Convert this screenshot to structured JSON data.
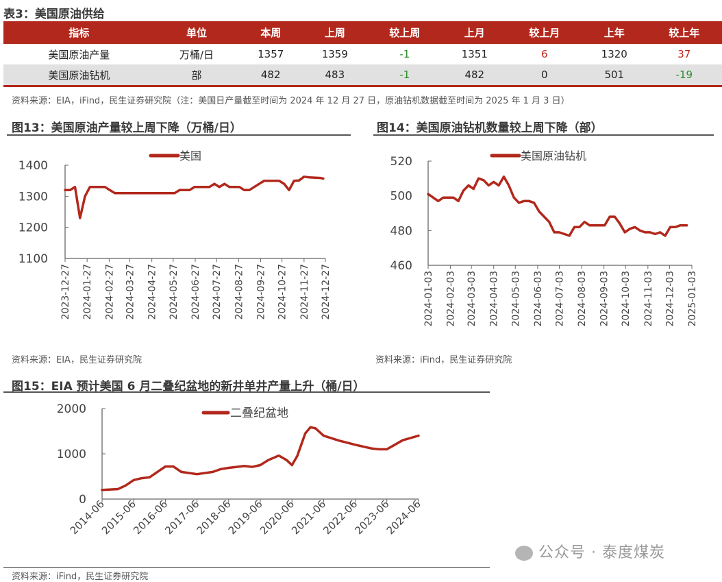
{
  "table3": {
    "title": "表3：美国原油供给",
    "headers": [
      "指标",
      "单位",
      "本周",
      "上周",
      "较上周",
      "上月",
      "较上月",
      "上年",
      "较上年"
    ],
    "rows": [
      [
        "美国原油产量",
        "万桶/日",
        "1357",
        "1359",
        "-1",
        "1351",
        "6",
        "1320",
        "37"
      ],
      [
        "美国原油钻机",
        "部",
        "482",
        "483",
        "-1",
        "482",
        "0",
        "501",
        "-19"
      ]
    ],
    "colors": {
      "header_bg": "#b2281c",
      "negative": "#2e8b2e",
      "positive": "#c0281c"
    },
    "source": "资料来源：EIA，iFind，民生证券研究院（注：美国日产量截至时间为 2024 年 12 月 27 日，原油钻机数据截至时间为 2025 年 1 月 3 日）"
  },
  "figures": {
    "fig13": {
      "title": "图13：美国原油产量较上周下降（万桶/日）",
      "source": "资料来源：EIA，民生证券研究院"
    },
    "fig14": {
      "title": "图14：美国原油钻机数量较上周下降（部）",
      "source": "资料来源：iFind，民生证券研究院"
    },
    "fig15": {
      "title": "图15：EIA 预计美国 6 月二叠纪盆地的新井单井产量上升（桶/日）",
      "source": "资料来源：iFind，民生证券研究院"
    }
  },
  "watermark": "公众号 · 泰度煤炭",
  "chart_data": [
    {
      "type": "line",
      "legend": "top",
      "grid": false,
      "color": "#b2281c",
      "ylim": [
        1100,
        1400
      ],
      "yticks": [
        1100,
        1200,
        1300,
        1400
      ],
      "xticks": [
        "2023-12-27",
        "2024-01-27",
        "2024-02-27",
        "2024-03-27",
        "2024-04-27",
        "2024-05-27",
        "2024-06-27",
        "2024-07-27",
        "2024-08-27",
        "2024-09-27",
        "2024-10-27",
        "2024-11-27",
        "2024-12-27"
      ],
      "series": [
        {
          "name": "美国",
          "points": [
            [
              "2023-12-27",
              1320
            ],
            [
              "2024-01-03",
              1320
            ],
            [
              "2024-01-10",
              1330
            ],
            [
              "2024-01-17",
              1230
            ],
            [
              "2024-01-24",
              1300
            ],
            [
              "2024-01-31",
              1330
            ],
            [
              "2024-02-07",
              1330
            ],
            [
              "2024-02-14",
              1330
            ],
            [
              "2024-02-21",
              1330
            ],
            [
              "2024-02-28",
              1320
            ],
            [
              "2024-03-06",
              1310
            ],
            [
              "2024-03-13",
              1310
            ],
            [
              "2024-03-20",
              1310
            ],
            [
              "2024-03-27",
              1310
            ],
            [
              "2024-04-03",
              1310
            ],
            [
              "2024-04-10",
              1310
            ],
            [
              "2024-04-17",
              1310
            ],
            [
              "2024-04-24",
              1310
            ],
            [
              "2024-05-01",
              1310
            ],
            [
              "2024-05-08",
              1310
            ],
            [
              "2024-05-15",
              1310
            ],
            [
              "2024-05-22",
              1310
            ],
            [
              "2024-05-29",
              1310
            ],
            [
              "2024-06-05",
              1320
            ],
            [
              "2024-06-12",
              1320
            ],
            [
              "2024-06-19",
              1320
            ],
            [
              "2024-06-26",
              1330
            ],
            [
              "2024-07-03",
              1330
            ],
            [
              "2024-07-10",
              1330
            ],
            [
              "2024-07-17",
              1330
            ],
            [
              "2024-07-24",
              1340
            ],
            [
              "2024-07-31",
              1330
            ],
            [
              "2024-08-07",
              1340
            ],
            [
              "2024-08-14",
              1330
            ],
            [
              "2024-08-21",
              1330
            ],
            [
              "2024-08-28",
              1330
            ],
            [
              "2024-09-04",
              1320
            ],
            [
              "2024-09-11",
              1320
            ],
            [
              "2024-09-18",
              1330
            ],
            [
              "2024-09-25",
              1340
            ],
            [
              "2024-10-02",
              1350
            ],
            [
              "2024-10-09",
              1350
            ],
            [
              "2024-10-16",
              1350
            ],
            [
              "2024-10-23",
              1350
            ],
            [
              "2024-10-30",
              1340
            ],
            [
              "2024-11-06",
              1320
            ],
            [
              "2024-11-13",
              1350
            ],
            [
              "2024-11-20",
              1351
            ],
            [
              "2024-11-27",
              1363
            ],
            [
              "2024-12-04",
              1361
            ],
            [
              "2024-12-11",
              1360
            ],
            [
              "2024-12-20",
              1359
            ],
            [
              "2024-12-24",
              1357
            ]
          ]
        }
      ]
    },
    {
      "type": "line",
      "legend": "top",
      "grid": false,
      "color": "#b2281c",
      "ylim": [
        460,
        520
      ],
      "yticks": [
        460,
        480,
        500,
        520
      ],
      "xticks": [
        "2024-01-03",
        "2024-02-03",
        "2024-03-03",
        "2024-04-03",
        "2024-05-03",
        "2024-06-03",
        "2024-07-03",
        "2024-08-03",
        "2024-09-03",
        "2024-10-03",
        "2024-11-03",
        "2024-12-03",
        "2025-01-03"
      ],
      "series": [
        {
          "name": "美国原油钻机",
          "points": [
            [
              "2024-01-03",
              501
            ],
            [
              "2024-01-10",
              499
            ],
            [
              "2024-01-17",
              497
            ],
            [
              "2024-01-24",
              499
            ],
            [
              "2024-01-31",
              499
            ],
            [
              "2024-02-07",
              499
            ],
            [
              "2024-02-14",
              497
            ],
            [
              "2024-02-21",
              503
            ],
            [
              "2024-02-28",
              506
            ],
            [
              "2024-03-06",
              504
            ],
            [
              "2024-03-13",
              510
            ],
            [
              "2024-03-20",
              509
            ],
            [
              "2024-03-27",
              506
            ],
            [
              "2024-04-03",
              508
            ],
            [
              "2024-04-10",
              506
            ],
            [
              "2024-04-17",
              511
            ],
            [
              "2024-04-24",
              506
            ],
            [
              "2024-05-01",
              499
            ],
            [
              "2024-05-08",
              496
            ],
            [
              "2024-05-15",
              497
            ],
            [
              "2024-05-22",
              497
            ],
            [
              "2024-05-29",
              496
            ],
            [
              "2024-06-05",
              491
            ],
            [
              "2024-06-12",
              488
            ],
            [
              "2024-06-19",
              485
            ],
            [
              "2024-06-26",
              479
            ],
            [
              "2024-07-03",
              479
            ],
            [
              "2024-07-10",
              478
            ],
            [
              "2024-07-17",
              477
            ],
            [
              "2024-07-24",
              482
            ],
            [
              "2024-07-31",
              482
            ],
            [
              "2024-08-07",
              485
            ],
            [
              "2024-08-14",
              483
            ],
            [
              "2024-08-21",
              483
            ],
            [
              "2024-08-28",
              483
            ],
            [
              "2024-09-04",
              483
            ],
            [
              "2024-09-11",
              488
            ],
            [
              "2024-09-18",
              488
            ],
            [
              "2024-09-25",
              484
            ],
            [
              "2024-10-02",
              479
            ],
            [
              "2024-10-09",
              481
            ],
            [
              "2024-10-16",
              482
            ],
            [
              "2024-10-23",
              480
            ],
            [
              "2024-10-30",
              479
            ],
            [
              "2024-11-06",
              479
            ],
            [
              "2024-11-13",
              478
            ],
            [
              "2024-11-20",
              479
            ],
            [
              "2024-11-27",
              477
            ],
            [
              "2024-12-04",
              482
            ],
            [
              "2024-12-11",
              482
            ],
            [
              "2024-12-18",
              483
            ],
            [
              "2024-12-27",
              483
            ]
          ]
        }
      ]
    },
    {
      "type": "line",
      "legend": "top",
      "grid": false,
      "color": "#b2281c",
      "ylim": [
        0,
        2000
      ],
      "yticks": [
        0,
        1000,
        2000
      ],
      "xticks": [
        "2014-06",
        "2015-06",
        "2016-06",
        "2017-06",
        "2018-06",
        "2019-06",
        "2020-06",
        "2021-06",
        "2022-06",
        "2023-06",
        "2024-06"
      ],
      "series": [
        {
          "name": "二叠纪盆地",
          "points": [
            [
              "2014-06",
              200
            ],
            [
              "2014-12",
              220
            ],
            [
              "2015-03",
              300
            ],
            [
              "2015-06",
              420
            ],
            [
              "2015-09",
              460
            ],
            [
              "2015-12",
              480
            ],
            [
              "2016-03",
              600
            ],
            [
              "2016-06",
              720
            ],
            [
              "2016-09",
              720
            ],
            [
              "2016-12",
              600
            ],
            [
              "2017-06",
              550
            ],
            [
              "2017-12",
              600
            ],
            [
              "2018-03",
              660
            ],
            [
              "2018-06",
              690
            ],
            [
              "2018-12",
              730
            ],
            [
              "2019-03",
              710
            ],
            [
              "2019-06",
              750
            ],
            [
              "2019-09",
              860
            ],
            [
              "2020-01",
              960
            ],
            [
              "2020-04",
              860
            ],
            [
              "2020-06",
              750
            ],
            [
              "2020-08",
              950
            ],
            [
              "2020-11",
              1450
            ],
            [
              "2021-01",
              1590
            ],
            [
              "2021-03",
              1560
            ],
            [
              "2021-06",
              1400
            ],
            [
              "2021-12",
              1290
            ],
            [
              "2022-06",
              1200
            ],
            [
              "2022-12",
              1120
            ],
            [
              "2023-03",
              1100
            ],
            [
              "2023-06",
              1100
            ],
            [
              "2023-09",
              1200
            ],
            [
              "2023-12",
              1300
            ],
            [
              "2024-06",
              1400
            ]
          ]
        }
      ]
    }
  ]
}
